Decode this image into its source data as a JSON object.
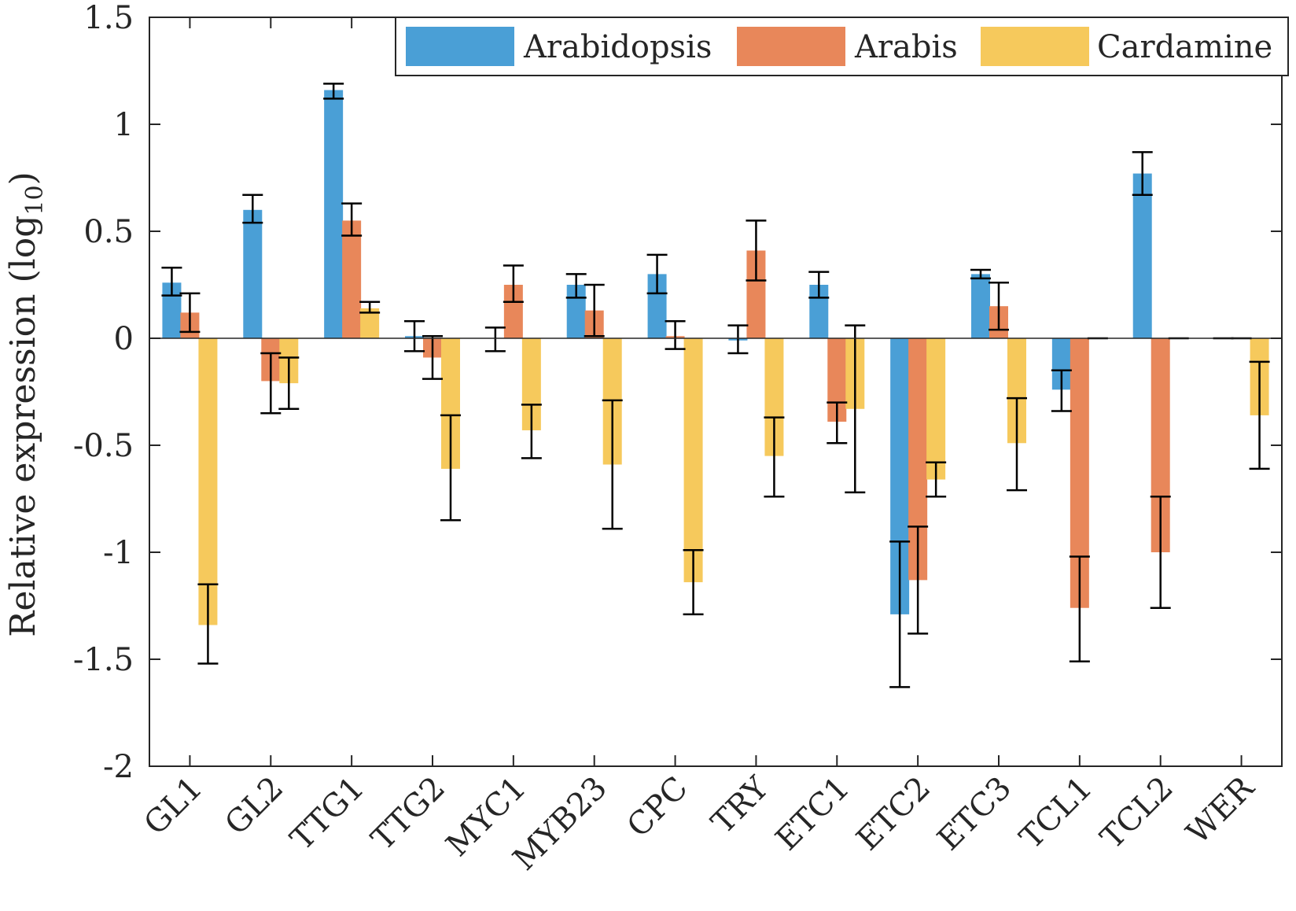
{
  "chart_data": {
    "type": "bar",
    "title": "",
    "xlabel": "",
    "ylabel": "Relative expression (log",
    "ylabel_subscript": "10",
    "ylabel_close": ")",
    "ylim": [
      -2,
      1.5
    ],
    "yticks": [
      "-2",
      "-1.5",
      "-1",
      "-0.5",
      "0",
      "0.5",
      "1",
      "1.5"
    ],
    "ytick_values": [
      -2,
      -1.5,
      -1,
      -0.5,
      0,
      0.5,
      1,
      1.5
    ],
    "grid": false,
    "legend_position": "top-right",
    "categories": [
      "GL1",
      "GL2",
      "TTG1",
      "TTG2",
      "MYC1",
      "MYB23",
      "CPC",
      "TRY",
      "ETC1",
      "ETC2",
      "ETC3",
      "TCL1",
      "TCL2",
      "WER"
    ],
    "series": [
      {
        "name": "Arabidopsis",
        "color": "#4a9fd6",
        "values": [
          0.26,
          0.6,
          1.16,
          0.01,
          0.0,
          0.25,
          0.3,
          -0.01,
          0.25,
          -1.29,
          0.3,
          -0.24,
          0.77,
          0.0
        ],
        "err_low": [
          0.2,
          0.54,
          1.12,
          -0.06,
          -0.06,
          0.19,
          0.21,
          -0.07,
          0.19,
          -1.63,
          0.28,
          -0.34,
          0.67,
          0.0
        ],
        "err_high": [
          0.33,
          0.67,
          1.19,
          0.08,
          0.05,
          0.3,
          0.39,
          0.06,
          0.31,
          -0.95,
          0.32,
          -0.15,
          0.87,
          0.0
        ]
      },
      {
        "name": "Arabis",
        "color": "#e8875a",
        "values": [
          0.12,
          -0.2,
          0.55,
          -0.09,
          0.25,
          0.13,
          0.01,
          0.41,
          -0.39,
          -1.13,
          0.15,
          -1.26,
          -1.0,
          0.0
        ],
        "err_low": [
          0.03,
          -0.35,
          0.48,
          -0.19,
          0.17,
          0.01,
          -0.05,
          0.27,
          -0.49,
          -1.38,
          0.04,
          -1.51,
          -1.26,
          0.0
        ],
        "err_high": [
          0.21,
          -0.07,
          0.63,
          0.01,
          0.34,
          0.25,
          0.08,
          0.55,
          -0.3,
          -0.88,
          0.26,
          -1.02,
          -0.74,
          0.0
        ]
      },
      {
        "name": "Cardamine",
        "color": "#f6c95c",
        "values": [
          -1.34,
          -0.21,
          0.14,
          -0.61,
          -0.43,
          -0.59,
          -1.14,
          -0.55,
          -0.33,
          -0.66,
          -0.49,
          0.0,
          0.0,
          -0.36
        ],
        "err_low": [
          -1.52,
          -0.33,
          0.12,
          -0.85,
          -0.56,
          -0.89,
          -1.29,
          -0.74,
          -0.72,
          -0.74,
          -0.71,
          0.0,
          0.0,
          -0.61
        ],
        "err_high": [
          -1.15,
          -0.09,
          0.17,
          -0.36,
          -0.31,
          -0.29,
          -0.99,
          -0.37,
          0.06,
          -0.58,
          -0.28,
          0.0,
          0.0,
          -0.11
        ]
      }
    ]
  }
}
